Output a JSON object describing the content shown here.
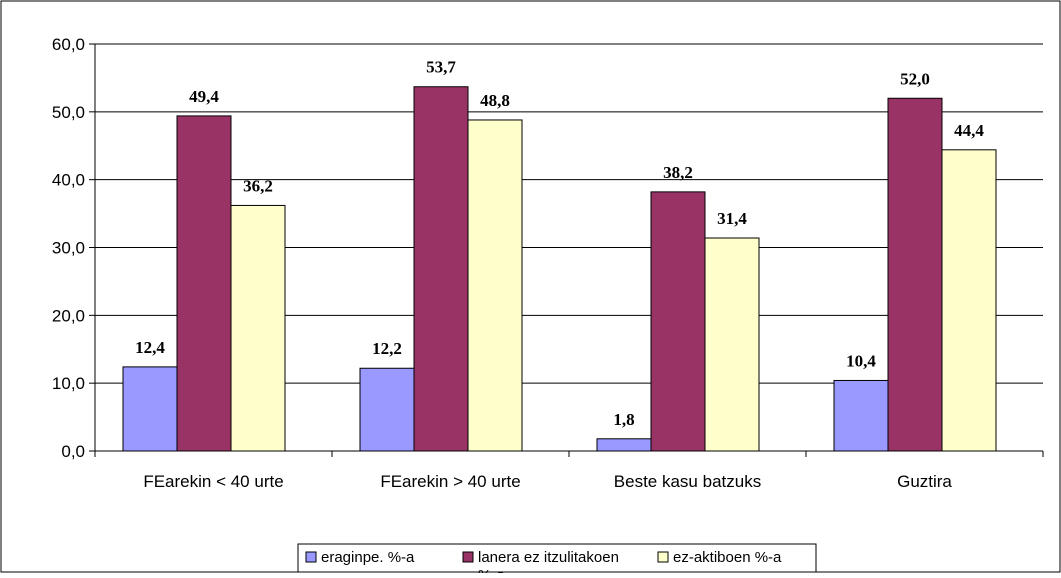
{
  "chart_data": {
    "type": "bar",
    "categories": [
      "FEarekin < 40 urte",
      "FEarekin > 40 urte",
      "Beste kasu batzuks",
      "Guztira"
    ],
    "series": [
      {
        "name": "eraginpe. %-a",
        "values": [
          12.4,
          12.2,
          1.8,
          10.4
        ],
        "value_labels": [
          "12,4",
          "12,2",
          "1,8",
          "10,4"
        ],
        "color": "#9999FF"
      },
      {
        "name": "lanera ez itzulitakoen %-a",
        "name_lines": [
          "lanera ez itzulitakoen",
          "%-a"
        ],
        "values": [
          49.4,
          53.7,
          38.2,
          52.0
        ],
        "value_labels": [
          "49,4",
          "53,7",
          "38,2",
          "52,0"
        ],
        "color": "#993366"
      },
      {
        "name": "ez-aktiboen %-a",
        "values": [
          36.2,
          48.8,
          31.4,
          44.4
        ],
        "value_labels": [
          "36,2",
          "48,8",
          "31,4",
          "44,4"
        ],
        "color": "#FFFFCC"
      }
    ],
    "ylim": [
      0,
      60
    ],
    "yticks": [
      0,
      10,
      20,
      30,
      40,
      50,
      60
    ],
    "ytick_labels": [
      "0,0",
      "10,0",
      "20,0",
      "30,0",
      "40,0",
      "50,0",
      "60,0"
    ],
    "grid": true,
    "legend_position": "bottom"
  }
}
